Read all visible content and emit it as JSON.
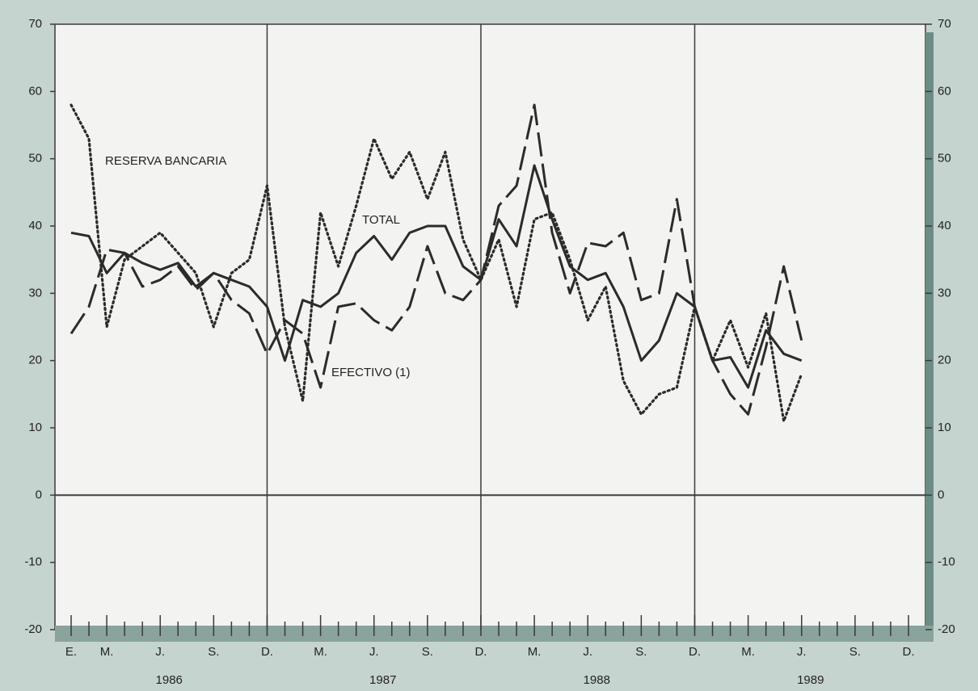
{
  "chart_data": {
    "type": "line",
    "categories": [
      "E.",
      null,
      "M.",
      null,
      null,
      "J.",
      null,
      null,
      "S.",
      null,
      null,
      "D.",
      null,
      null,
      "M.",
      null,
      null,
      "J.",
      null,
      null,
      "S.",
      null,
      null,
      "D.",
      null,
      null,
      "M.",
      null,
      null,
      "J.",
      null,
      null,
      "S.",
      null,
      null,
      "D.",
      null,
      null,
      "M.",
      null,
      null,
      "J.",
      null,
      null,
      "S.",
      null,
      null,
      "D."
    ],
    "year_labels": [
      "1986",
      "1987",
      "1988",
      "1989"
    ],
    "series": [
      {
        "name": "RESERVA BANCARIA",
        "color": "#2b2b2b",
        "style": "dotted",
        "values": [
          58,
          53,
          25,
          35,
          37,
          39,
          36,
          33,
          25,
          33,
          35,
          46,
          25,
          14,
          42,
          34,
          43,
          53,
          47,
          51,
          44,
          51,
          38,
          32,
          38,
          28,
          41,
          42,
          35,
          26,
          31,
          17,
          12,
          15,
          16,
          28,
          20,
          26,
          19,
          27,
          11,
          18,
          null,
          null,
          null,
          null,
          null,
          null
        ]
      },
      {
        "name": "TOTAL",
        "color": "#2b2b2b",
        "style": "solid",
        "values": [
          39,
          38.5,
          33,
          36,
          34.5,
          33.5,
          34.5,
          31,
          33,
          32,
          31,
          28,
          20,
          29,
          28,
          30,
          36,
          38.5,
          35,
          39,
          40,
          40,
          34,
          32,
          41,
          37,
          49,
          41,
          34,
          32,
          33,
          28,
          20,
          23,
          30,
          28,
          20,
          20.5,
          16,
          24.5,
          21,
          20,
          null,
          null,
          null,
          null,
          null,
          null
        ]
      },
      {
        "name": "EFECTIVO (1)",
        "color": "#2b2b2b",
        "style": "dashed",
        "values": [
          24,
          28,
          36.5,
          36,
          31,
          32,
          34,
          30.5,
          33,
          29,
          27,
          21,
          26,
          24,
          16,
          28,
          28.5,
          26,
          24.5,
          28,
          37,
          30,
          29,
          32,
          43,
          46,
          58,
          39,
          30,
          37.5,
          37,
          39,
          29,
          30,
          44,
          28,
          20,
          15,
          12,
          22,
          34,
          23,
          null,
          null,
          null,
          null,
          null,
          null
        ]
      }
    ],
    "ylim": [
      -20,
      70
    ],
    "yticks": [
      -20,
      -10,
      0,
      10,
      20,
      30,
      40,
      50,
      60,
      70
    ],
    "y2lim": [
      -20,
      70
    ],
    "y2ticks": [
      -20,
      -10,
      0,
      10,
      20,
      30,
      40,
      50,
      60,
      70
    ]
  }
}
